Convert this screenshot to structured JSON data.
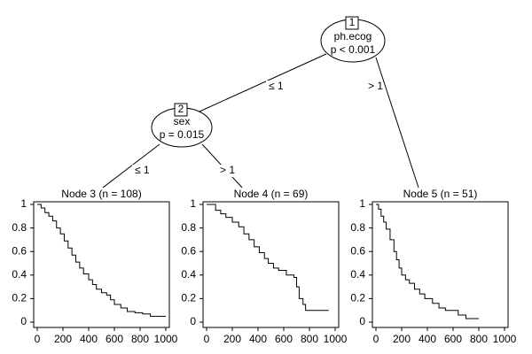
{
  "tree": {
    "nodes": [
      {
        "id": "1",
        "label": "ph.ecog",
        "p": "p < 0.001"
      },
      {
        "id": "2",
        "label": "sex",
        "p": "p = 0.015"
      }
    ],
    "edges": [
      "≤ 1",
      "> 1",
      "≤ 1",
      "> 1"
    ]
  },
  "chart_data": [
    {
      "type": "step",
      "title": "Node 3 (n = 108)",
      "color": "#000000",
      "x": [
        0,
        30,
        60,
        90,
        120,
        150,
        180,
        210,
        240,
        270,
        300,
        330,
        360,
        400,
        430,
        460,
        500,
        540,
        570,
        600,
        650,
        700,
        760,
        820,
        880,
        1000
      ],
      "values": [
        1,
        0.97,
        0.93,
        0.9,
        0.86,
        0.8,
        0.75,
        0.69,
        0.63,
        0.57,
        0.51,
        0.46,
        0.41,
        0.36,
        0.32,
        0.28,
        0.25,
        0.23,
        0.19,
        0.15,
        0.12,
        0.09,
        0.08,
        0.07,
        0.05,
        0.05
      ],
      "xlim": [
        0,
        1000
      ],
      "ylim": [
        0,
        1
      ],
      "xticks": [
        0,
        200,
        400,
        600,
        800,
        1000
      ],
      "yticks": [
        0,
        0.2,
        0.4,
        0.6,
        0.8,
        1
      ]
    },
    {
      "type": "step",
      "title": "Node 4 (n = 69)",
      "color": "#000000",
      "x": [
        0,
        70,
        110,
        150,
        200,
        250,
        290,
        330,
        370,
        410,
        450,
        480,
        520,
        560,
        620,
        680,
        700,
        720,
        750,
        770,
        950
      ],
      "values": [
        1,
        0.95,
        0.92,
        0.89,
        0.85,
        0.81,
        0.75,
        0.7,
        0.64,
        0.59,
        0.54,
        0.5,
        0.46,
        0.44,
        0.4,
        0.38,
        0.3,
        0.2,
        0.15,
        0.1,
        0.1
      ],
      "xlim": [
        0,
        1000
      ],
      "ylim": [
        0,
        1
      ],
      "xticks": [
        0,
        200,
        400,
        600,
        800,
        1000
      ],
      "yticks": [
        0,
        0.2,
        0.4,
        0.6,
        0.8,
        1
      ]
    },
    {
      "type": "step",
      "title": "Node 5 (n = 51)",
      "color": "#000000",
      "x": [
        0,
        20,
        40,
        60,
        80,
        110,
        140,
        160,
        180,
        200,
        230,
        260,
        300,
        340,
        380,
        440,
        490,
        540,
        640,
        700,
        800
      ],
      "values": [
        1,
        0.96,
        0.9,
        0.85,
        0.79,
        0.7,
        0.6,
        0.53,
        0.46,
        0.4,
        0.36,
        0.33,
        0.28,
        0.24,
        0.2,
        0.16,
        0.12,
        0.1,
        0.06,
        0.03,
        0.03
      ],
      "xlim": [
        0,
        1000
      ],
      "ylim": [
        0,
        1
      ],
      "xticks": [
        0,
        200,
        400,
        600,
        800,
        1000
      ],
      "yticks": [
        0,
        0.2,
        0.4,
        0.6,
        0.8,
        1
      ]
    }
  ]
}
